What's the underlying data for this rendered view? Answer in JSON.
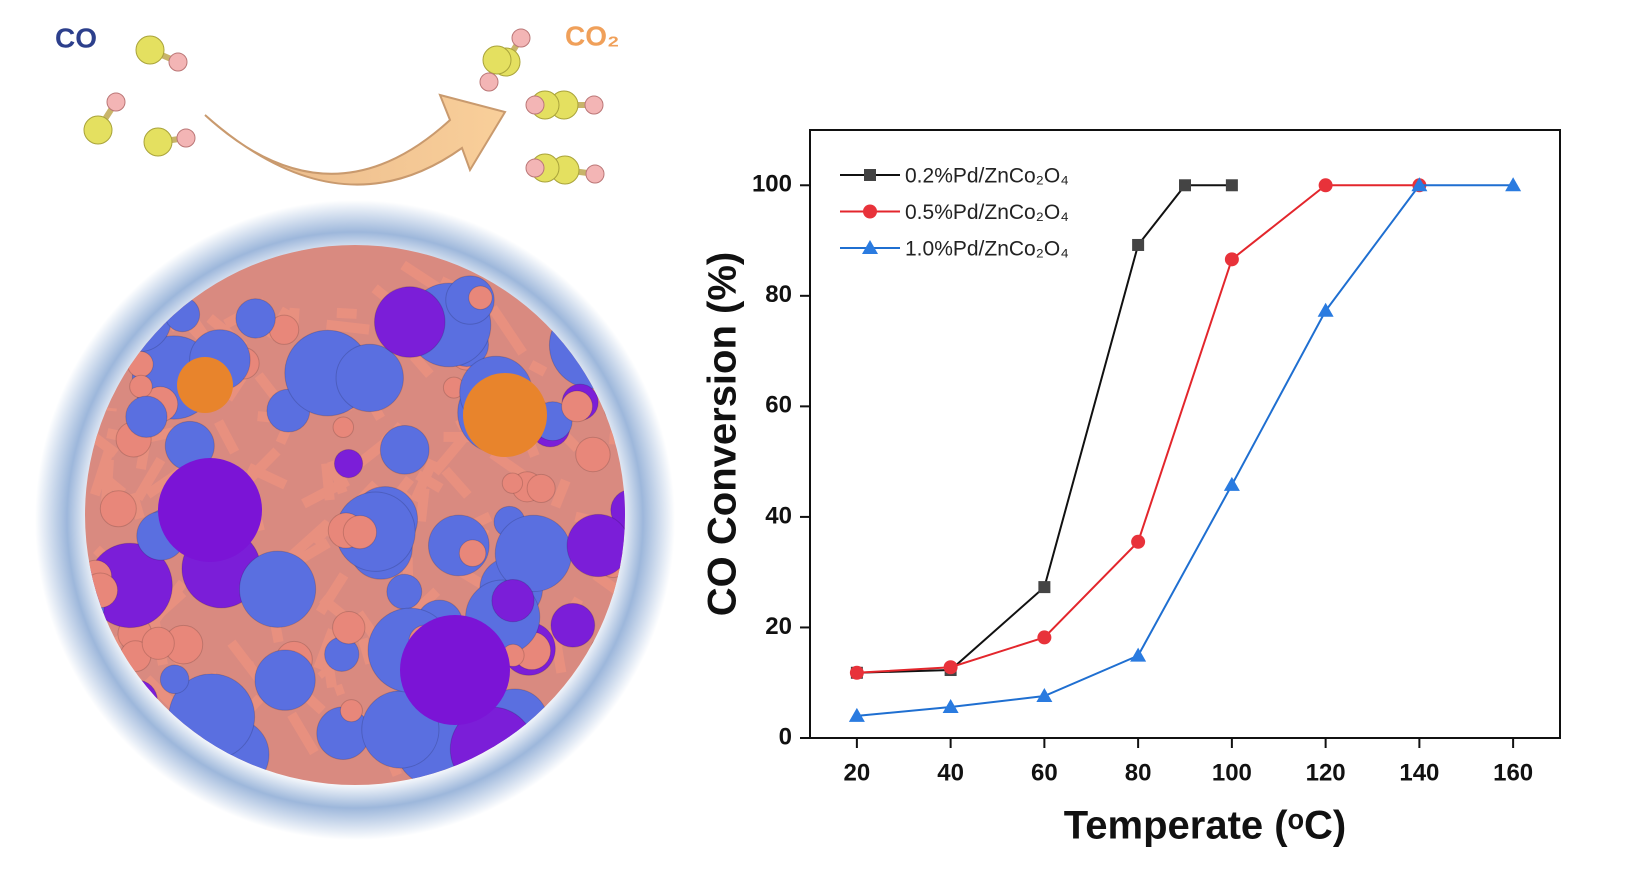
{
  "illustration": {
    "reactant_label": "CO",
    "product_label": "CO₂"
  },
  "chart_data": {
    "type": "line",
    "xlabel": "Temperate (ᵒC)",
    "ylabel": "CO Conversion  (%)",
    "xlim": [
      10,
      170
    ],
    "xticks": [
      20,
      40,
      60,
      80,
      100,
      120,
      140,
      160
    ],
    "ylim": [
      0,
      110
    ],
    "yticks": [
      0,
      20,
      40,
      60,
      80,
      100
    ],
    "legend": "upper-left",
    "series": [
      {
        "name": "0.2%Pd/ZnCo₂O₄",
        "color": "#111111",
        "marker_color": "#444444",
        "marker": "square",
        "x": [
          20,
          40,
          60,
          80,
          90,
          100
        ],
        "values": [
          11.8,
          12.3,
          27.3,
          89.2,
          100,
          100
        ]
      },
      {
        "name": "0.5%Pd/ZnCo₂O₄",
        "color": "#e3262c",
        "marker_color": "#e8323a",
        "marker": "circle",
        "x": [
          20,
          40,
          60,
          80,
          100,
          120,
          140
        ],
        "values": [
          11.8,
          12.8,
          18.2,
          35.5,
          86.6,
          100,
          100
        ]
      },
      {
        "name": "1.0%Pd/ZnCo₂O₄",
        "color": "#1f6fd1",
        "marker_color": "#2a7be0",
        "marker": "triangle",
        "x": [
          20,
          40,
          60,
          80,
          100,
          120,
          140,
          160
        ],
        "values": [
          4,
          5.6,
          7.6,
          14.9,
          45.8,
          77.3,
          100,
          100
        ]
      }
    ]
  }
}
